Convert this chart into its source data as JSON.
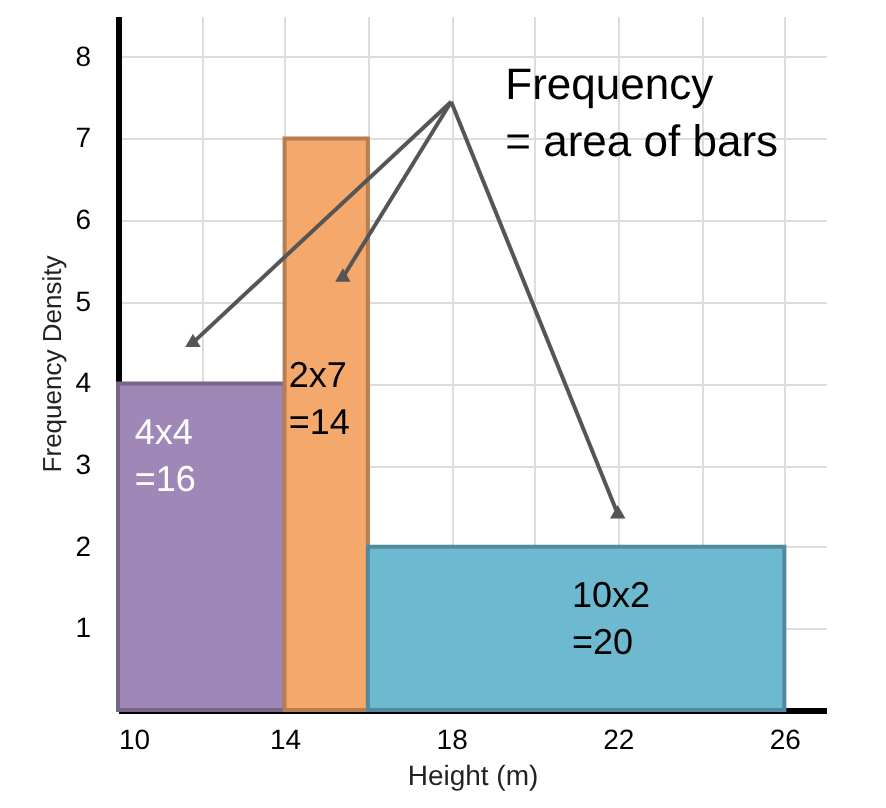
{
  "chart_data": {
    "type": "histogram",
    "xlabel": "Height (m)",
    "ylabel": "Frequency Density",
    "bins": [
      10,
      14,
      16,
      26
    ],
    "values": [
      4,
      7,
      2
    ],
    "colors": [
      "#9f88b8",
      "#f4a86c",
      "#6cb9d0"
    ],
    "xlim": [
      10,
      27
    ],
    "xticks": [
      10,
      {
        "value": 12,
        "label": null
      },
      14,
      {
        "value": 16,
        "label": null
      },
      18,
      {
        "value": 20,
        "label": null
      },
      22,
      {
        "value": 24,
        "label": null
      },
      26
    ],
    "ylim": [
      0,
      8.5
    ],
    "yticks": [
      1,
      2,
      3,
      4,
      5,
      6,
      7,
      8
    ],
    "grid": true,
    "annotations": [
      "Frequency\n= area of bars",
      "4x4\n=16",
      "2x7\n=14",
      "10x2\n=20"
    ]
  }
}
